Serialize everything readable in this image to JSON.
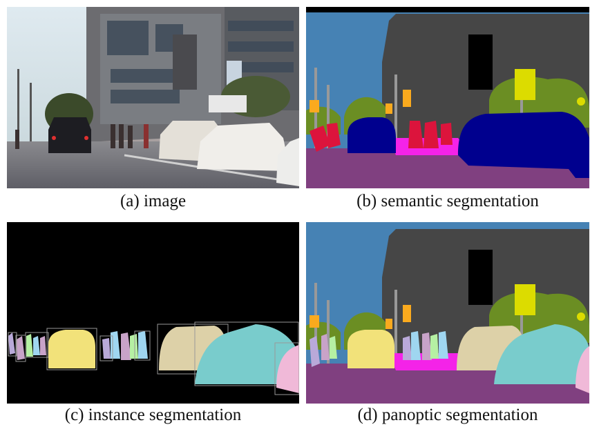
{
  "captions": {
    "a": "(a) image",
    "b": "(b) semantic segmentation",
    "c": "(c) instance segmentation",
    "d": "(d) panoptic segmentation"
  },
  "colors": {
    "sky": "#4682b4",
    "building": "#464646",
    "road": "#804080",
    "sidewalk": "#f423e8",
    "vegetation": "#6b8e23",
    "car": "#00008e",
    "person": "#dc143c",
    "traffic_light": "#faaa1e",
    "traffic_sign": "#dcdc00",
    "pole": "#999999",
    "black": "#000000",
    "instance_car_1": "#f2e27a",
    "instance_car_2": "#ddd1a8",
    "instance_car_3": "#79cccc",
    "instance_car_4": "#f0b9d8",
    "instance_person_1": "#b9a9d9",
    "instance_person_2": "#9fd6f0",
    "instance_person_3": "#b5f0a3",
    "instance_person_4": "#c8a3c8"
  }
}
